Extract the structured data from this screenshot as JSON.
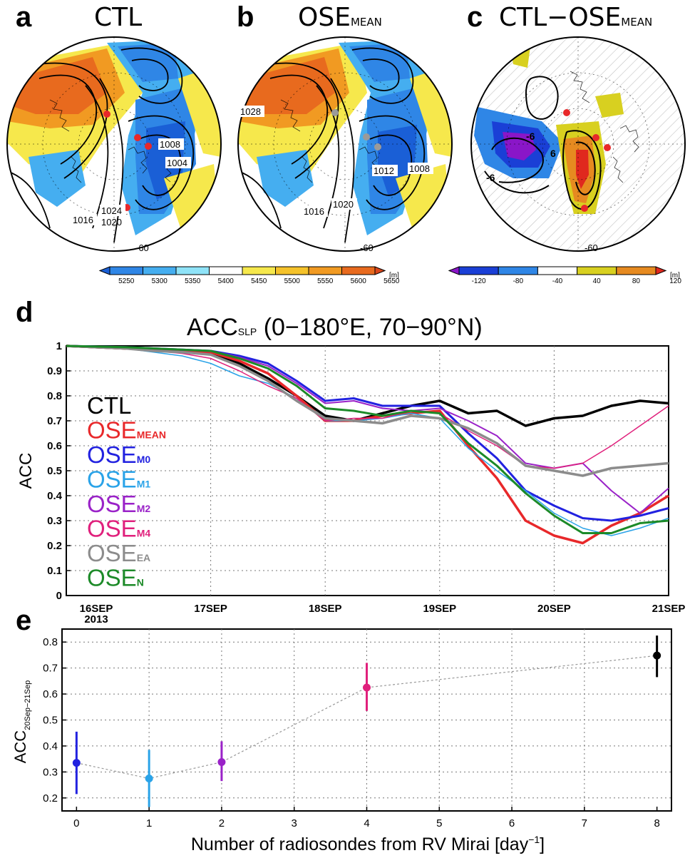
{
  "panels": {
    "a": {
      "letter": "a",
      "title": "CTL",
      "labels": [
        "1008",
        "1004",
        "1024",
        "1016",
        "1020",
        "-60"
      ]
    },
    "b": {
      "letter": "b",
      "title": "OSE",
      "title_sub": "MEAN",
      "labels": [
        "1028",
        "1012",
        "1008",
        "1016",
        "1020",
        "-60"
      ]
    },
    "c": {
      "letter": "c",
      "title": "CTL−OSE",
      "title_sub": "MEAN",
      "labels": [
        "6",
        "-6",
        "-6",
        "-60"
      ]
    },
    "d": {
      "letter": "d"
    },
    "e": {
      "letter": "e"
    }
  },
  "colorbars": {
    "left": {
      "ticks": [
        "5250",
        "5300",
        "5350",
        "5400",
        "5450",
        "5500",
        "5550",
        "5600",
        "5650"
      ],
      "unit": "[m]",
      "colors": [
        "#1a5fd6",
        "#2f86e6",
        "#45aef0",
        "#8fe3f8",
        "#ffffff",
        "#f6e84c",
        "#f5c22a",
        "#f19a22",
        "#e86a1e",
        "#d9461a"
      ]
    },
    "right": {
      "ticks": [
        "-120",
        "-80",
        "-40",
        "40",
        "80",
        "120"
      ],
      "unit": "[m]",
      "colors": [
        "#8a16c8",
        "#1a3fd6",
        "#2f86e6",
        "#ffffff",
        "#d8d020",
        "#e68a20",
        "#e0281e"
      ]
    }
  },
  "chart_data": [
    {
      "type": "line",
      "title": "ACC",
      "title_sub": "SLP",
      "title_tail": " (0−180°E, 70−90°N)",
      "ylabel": "ACC",
      "xlim": [
        0,
        5
      ],
      "ylim": [
        0,
        1
      ],
      "yticks": [
        "0",
        "0.1",
        "0.2",
        "0.3",
        "0.4",
        "0.5",
        "0.6",
        "0.7",
        "0.8",
        "0.9",
        "1"
      ],
      "x_tick_labels": [
        "16SEP",
        "17SEP",
        "18SEP",
        "19SEP",
        "20SEP",
        "21SEP"
      ],
      "x_tick_year": "2013",
      "x": [
        0,
        0.25,
        0.5,
        0.75,
        1,
        1.25,
        1.5,
        1.75,
        2,
        2.25,
        2.5,
        2.75,
        3,
        3.25,
        3.5,
        3.75,
        4,
        4.25,
        4.5,
        4.75,
        5
      ],
      "series": [
        {
          "name": "CTL",
          "name_main": "CTL",
          "name_sub": "",
          "color": "#000000",
          "width": 3.5,
          "values": [
            1,
            0.99,
            0.985,
            0.98,
            0.975,
            0.93,
            0.87,
            0.8,
            0.72,
            0.7,
            0.73,
            0.76,
            0.78,
            0.73,
            0.74,
            0.68,
            0.71,
            0.72,
            0.76,
            0.78,
            0.77
          ]
        },
        {
          "name": "OSE_MEAN",
          "name_main": "OSE",
          "name_sub": "MEAN",
          "color": "#e8282a",
          "width": 3.5,
          "values": [
            1,
            0.99,
            0.985,
            0.98,
            0.975,
            0.94,
            0.89,
            0.8,
            0.7,
            0.7,
            0.72,
            0.73,
            0.74,
            0.6,
            0.47,
            0.3,
            0.24,
            0.21,
            0.28,
            0.33,
            0.4
          ]
        },
        {
          "name": "OSE_M0",
          "name_main": "OSE",
          "name_sub": "M0",
          "color": "#2222e0",
          "width": 3,
          "values": [
            1,
            0.995,
            0.99,
            0.985,
            0.98,
            0.96,
            0.93,
            0.86,
            0.78,
            0.79,
            0.76,
            0.76,
            0.76,
            0.65,
            0.55,
            0.42,
            0.36,
            0.31,
            0.3,
            0.32,
            0.35
          ]
        },
        {
          "name": "OSE_M1",
          "name_main": "OSE",
          "name_sub": "M1",
          "color": "#2aa3e8",
          "width": 1.5,
          "values": [
            1,
            0.99,
            0.975,
            0.96,
            0.93,
            0.88,
            0.85,
            0.79,
            0.7,
            0.7,
            0.71,
            0.73,
            0.71,
            0.59,
            0.5,
            0.42,
            0.33,
            0.27,
            0.24,
            0.27,
            0.31
          ]
        },
        {
          "name": "OSE_M2",
          "name_main": "OSE",
          "name_sub": "M2",
          "color": "#9a22c8",
          "width": 2,
          "values": [
            1,
            0.995,
            0.99,
            0.985,
            0.98,
            0.955,
            0.92,
            0.85,
            0.77,
            0.78,
            0.75,
            0.74,
            0.75,
            0.7,
            0.64,
            0.53,
            0.51,
            0.53,
            0.42,
            0.33,
            0.43
          ]
        },
        {
          "name": "OSE_M4",
          "name_main": "OSE",
          "name_sub": "M4",
          "color": "#e0207c",
          "width": 1.5,
          "values": [
            1,
            0.99,
            0.98,
            0.97,
            0.95,
            0.9,
            0.84,
            0.79,
            0.7,
            0.71,
            0.71,
            0.74,
            0.73,
            0.66,
            0.6,
            0.52,
            0.51,
            0.53,
            0.6,
            0.68,
            0.76
          ]
        },
        {
          "name": "OSE_EA",
          "name_main": "OSE",
          "name_sub": "EA",
          "color": "#8c8c8c",
          "width": 3.5,
          "values": [
            1,
            0.99,
            0.98,
            0.975,
            0.965,
            0.92,
            0.86,
            0.78,
            0.71,
            0.7,
            0.69,
            0.72,
            0.71,
            0.67,
            0.61,
            0.52,
            0.5,
            0.48,
            0.51,
            0.52,
            0.53
          ]
        },
        {
          "name": "OSE_N",
          "name_main": "OSE",
          "name_sub": "N",
          "color": "#1c8a28",
          "width": 3,
          "values": [
            1,
            0.995,
            0.99,
            0.985,
            0.98,
            0.95,
            0.91,
            0.84,
            0.75,
            0.74,
            0.72,
            0.74,
            0.73,
            0.61,
            0.52,
            0.41,
            0.32,
            0.25,
            0.25,
            0.29,
            0.3
          ]
        }
      ]
    },
    {
      "type": "scatter",
      "ylabel": "ACC",
      "ylabel_sub": "20Sep−21Sep",
      "xlabel": "Number of radiosondes from RV Mirai [day",
      "xlabel_sup": "−1",
      "xlabel_tail": "]",
      "xlim": [
        -0.2,
        8.2
      ],
      "ylim": [
        0.15,
        0.85
      ],
      "xticks": [
        "0",
        "1",
        "2",
        "3",
        "4",
        "5",
        "6",
        "7",
        "8"
      ],
      "yticks": [
        "0.2",
        "0.3",
        "0.4",
        "0.5",
        "0.6",
        "0.7",
        "0.8"
      ],
      "points": [
        {
          "x": 0,
          "y": 0.335,
          "low": 0.215,
          "high": 0.455,
          "color": "#2222e0"
        },
        {
          "x": 1,
          "y": 0.275,
          "low": 0.165,
          "high": 0.385,
          "color": "#2aa3e8"
        },
        {
          "x": 2,
          "y": 0.338,
          "low": 0.265,
          "high": 0.418,
          "color": "#9a22c8"
        },
        {
          "x": 4,
          "y": 0.625,
          "low": 0.535,
          "high": 0.72,
          "color": "#e0207c"
        },
        {
          "x": 8,
          "y": 0.748,
          "low": 0.665,
          "high": 0.825,
          "color": "#000000"
        }
      ]
    }
  ]
}
